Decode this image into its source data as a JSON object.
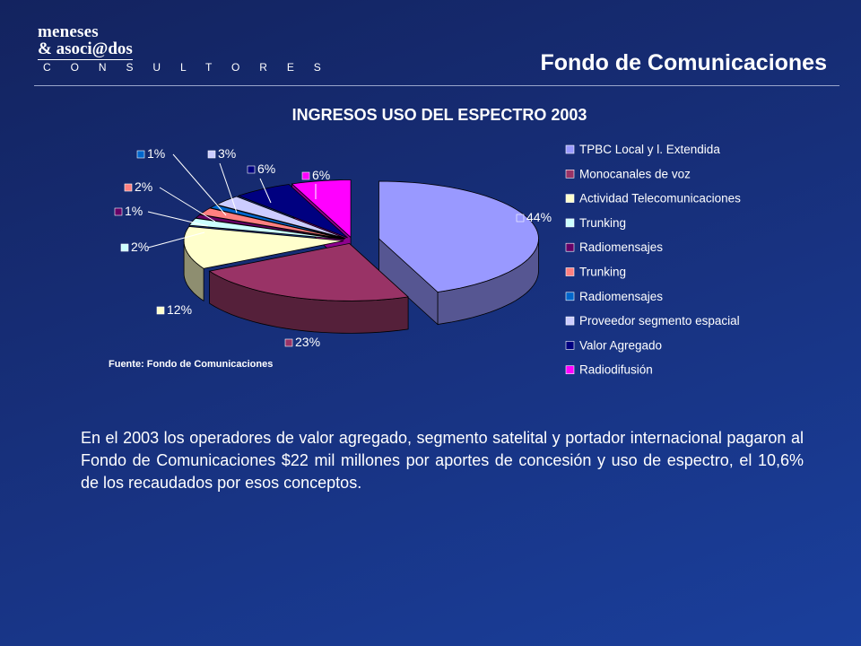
{
  "logo": {
    "line1": "meneses",
    "line2": "& asoci@dos",
    "line3": "C O N S U L T O R E S"
  },
  "header": {
    "title": "Fondo de Comunicaciones"
  },
  "source": "Fuente: Fondo de Comunicaciones",
  "body_text": "En el 2003 los operadores de valor agregado, segmento satelital y portador internacional pagaron al Fondo de Comunicaciones $22 mil millones por aportes de concesión y uso de espectro, el 10,6% de los recaudados por esos conceptos.",
  "chart_data": {
    "type": "pie",
    "title": "INGRESOS  USO DEL ESPECTRO  2003",
    "style": "3d-exploded",
    "legend_position": "right",
    "series": [
      {
        "name": "TPBC Local y l. Extendida",
        "value": 44,
        "label": "44%",
        "color": "#9999ff",
        "side": "#565692"
      },
      {
        "name": "Monocanales de voz",
        "value": 23,
        "label": "23%",
        "color": "#993366",
        "side": "#55203a"
      },
      {
        "name": "Actividad Telecomunicaciones",
        "value": 12,
        "label": "12%",
        "color": "#ffffcc",
        "side": "#8e8e70"
      },
      {
        "name": "Trunking",
        "value": 2,
        "label": "2%",
        "color": "#ccffff",
        "side": "#728e8e"
      },
      {
        "name": "Radiomensajes",
        "value": 1,
        "label": "1%",
        "color": "#660066",
        "side": "#380038"
      },
      {
        "name": "Trunking",
        "value": 2,
        "label": "2%",
        "color": "#ff8080",
        "side": "#8e4848"
      },
      {
        "name": "Radiomensajes",
        "value": 1,
        "label": "1%",
        "color": "#0066cc",
        "side": "#003872"
      },
      {
        "name": "Proveedor segmento espacial",
        "value": 3,
        "label": "3%",
        "color": "#ccccff",
        "side": "#72728e"
      },
      {
        "name": "Valor Agregado",
        "value": 6,
        "label": "6%",
        "color": "#000080",
        "side": "#000048"
      },
      {
        "name": "Radiodifusión",
        "value": 6,
        "label": "6%",
        "color": "#ff00ff",
        "side": "#8e008e"
      }
    ]
  }
}
